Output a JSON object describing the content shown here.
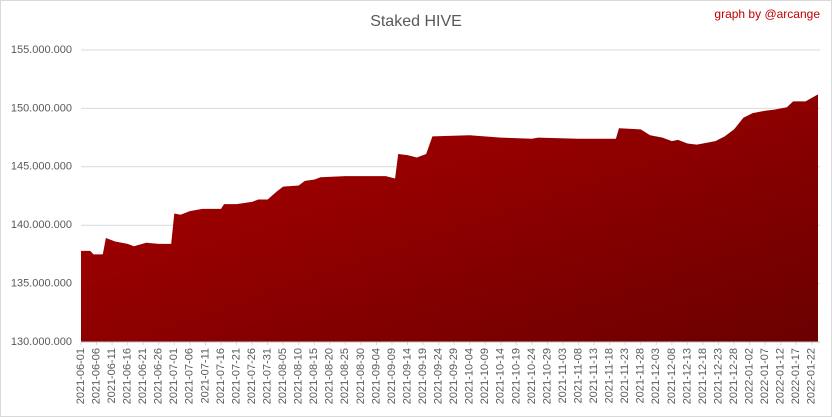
{
  "chart_data": {
    "type": "area",
    "title": "Staked HIVE",
    "annotation": "graph by @arcange",
    "color": "#b00000",
    "grid": true,
    "x": [
      "2021-06-01",
      "2021-06-04",
      "2021-06-05",
      "2021-06-08",
      "2021-06-09",
      "2021-06-12",
      "2021-06-16",
      "2021-06-18",
      "2021-06-22",
      "2021-06-26",
      "2021-06-30",
      "2021-07-01",
      "2021-07-03",
      "2021-07-06",
      "2021-07-10",
      "2021-07-16",
      "2021-07-17",
      "2021-07-21",
      "2021-07-26",
      "2021-07-28",
      "2021-07-31",
      "2021-08-03",
      "2021-08-05",
      "2021-08-10",
      "2021-08-12",
      "2021-08-15",
      "2021-08-17",
      "2021-08-25",
      "2021-09-01",
      "2021-09-07",
      "2021-09-10",
      "2021-09-11",
      "2021-09-14",
      "2021-09-17",
      "2021-09-20",
      "2021-09-22",
      "2021-10-04",
      "2021-10-14",
      "2021-10-24",
      "2021-10-26",
      "2021-11-08",
      "2021-11-13",
      "2021-11-20",
      "2021-11-21",
      "2021-11-28",
      "2021-12-01",
      "2021-12-05",
      "2021-12-08",
      "2021-12-10",
      "2021-12-13",
      "2021-12-16",
      "2021-12-18",
      "2021-12-22",
      "2021-12-25",
      "2021-12-28",
      "2021-12-31",
      "2022-01-03",
      "2022-01-07",
      "2022-01-10",
      "2022-01-14",
      "2022-01-16",
      "2022-01-20",
      "2022-01-24"
    ],
    "values": [
      137800000,
      137800000,
      137500000,
      137500000,
      138900000,
      138600000,
      138400000,
      138200000,
      138500000,
      138400000,
      138400000,
      141000000,
      140900000,
      141200000,
      141400000,
      141400000,
      141800000,
      141800000,
      142000000,
      142200000,
      142200000,
      142900000,
      143300000,
      143400000,
      143800000,
      143900000,
      144100000,
      144200000,
      144200000,
      144200000,
      144000000,
      146100000,
      146000000,
      145800000,
      146100000,
      147600000,
      147700000,
      147500000,
      147400000,
      147500000,
      147400000,
      147400000,
      147400000,
      148300000,
      148200000,
      147700000,
      147500000,
      147200000,
      147300000,
      147000000,
      146900000,
      147000000,
      147200000,
      147600000,
      148200000,
      149200000,
      149600000,
      149800000,
      149900000,
      150100000,
      150600000,
      150600000,
      151200000
    ],
    "xlim": [
      "2021-06-01",
      "2022-01-24"
    ],
    "xticks": [
      "2021-06-01",
      "2021-06-06",
      "2021-06-11",
      "2021-06-16",
      "2021-06-21",
      "2021-06-26",
      "2021-07-01",
      "2021-07-06",
      "2021-07-11",
      "2021-07-16",
      "2021-07-21",
      "2021-07-26",
      "2021-07-31",
      "2021-08-05",
      "2021-08-10",
      "2021-08-15",
      "2021-08-20",
      "2021-08-25",
      "2021-08-30",
      "2021-09-04",
      "2021-09-09",
      "2021-09-14",
      "2021-09-19",
      "2021-09-24",
      "2021-09-29",
      "2021-10-04",
      "2021-10-09",
      "2021-10-14",
      "2021-10-19",
      "2021-10-24",
      "2021-10-29",
      "2021-11-03",
      "2021-11-08",
      "2021-11-13",
      "2021-11-18",
      "2021-11-23",
      "2021-11-28",
      "2021-12-03",
      "2021-12-08",
      "2021-12-13",
      "2021-12-18",
      "2021-12-23",
      "2021-12-28",
      "2022-01-02",
      "2022-01-07",
      "2022-01-12",
      "2022-01-17",
      "2022-01-22"
    ],
    "ylim": [
      130000000,
      155000000
    ],
    "yticks": [
      {
        "value": 130000000,
        "label": "130.000.000"
      },
      {
        "value": 135000000,
        "label": "135.000.000"
      },
      {
        "value": 140000000,
        "label": "140.000.000"
      },
      {
        "value": 145000000,
        "label": "145.000.000"
      },
      {
        "value": 150000000,
        "label": "150.000.000"
      },
      {
        "value": 155000000,
        "label": "155.000.000"
      }
    ]
  }
}
